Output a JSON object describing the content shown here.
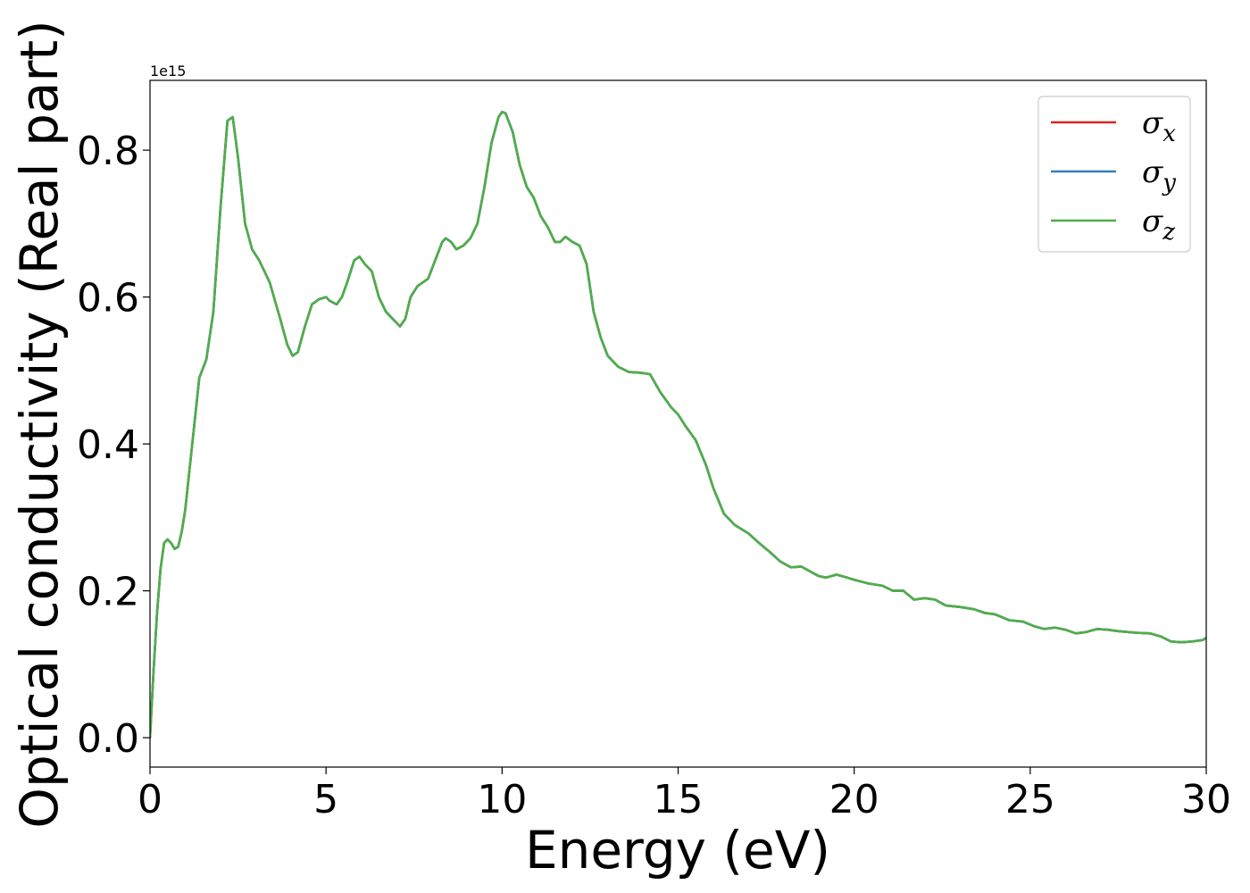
{
  "chart_data": {
    "type": "line",
    "xlabel": "Energy (eV)",
    "ylabel": "Optical conductivity (Real part)",
    "offset_text": "1e15",
    "xlim": [
      0,
      30
    ],
    "ylim": [
      -0.04,
      0.895
    ],
    "xticks": [
      0,
      5,
      10,
      15,
      20,
      25,
      30
    ],
    "xtick_labels": [
      "0",
      "5",
      "10",
      "15",
      "20",
      "25",
      "30"
    ],
    "yticks": [
      0.0,
      0.2,
      0.4,
      0.6,
      0.8
    ],
    "ytick_labels": [
      "0.0",
      "0.2",
      "0.4",
      "0.6",
      "0.8"
    ],
    "grid": false,
    "legend_position": "top-right",
    "x": [
      0,
      0.1,
      0.2,
      0.3,
      0.4,
      0.5,
      0.6,
      0.7,
      0.8,
      0.9,
      1.0,
      1.2,
      1.4,
      1.6,
      1.8,
      2.0,
      2.2,
      2.35,
      2.5,
      2.7,
      2.9,
      3.1,
      3.4,
      3.7,
      3.9,
      4.05,
      4.2,
      4.4,
      4.6,
      4.8,
      5.0,
      5.1,
      5.3,
      5.45,
      5.6,
      5.8,
      5.95,
      6.1,
      6.3,
      6.5,
      6.7,
      6.9,
      7.1,
      7.25,
      7.4,
      7.6,
      7.9,
      8.1,
      8.3,
      8.4,
      8.55,
      8.7,
      8.9,
      9.1,
      9.3,
      9.5,
      9.7,
      9.9,
      10.0,
      10.1,
      10.3,
      10.5,
      10.7,
      10.9,
      11.1,
      11.3,
      11.5,
      11.65,
      11.8,
      12.0,
      12.2,
      12.4,
      12.6,
      12.8,
      13.0,
      13.3,
      13.6,
      13.9,
      14.2,
      14.5,
      14.8,
      15.0,
      15.2,
      15.5,
      15.8,
      16.0,
      16.3,
      16.6,
      17.0,
      17.3,
      17.6,
      17.9,
      18.2,
      18.5,
      18.8,
      19.0,
      19.2,
      19.5,
      19.8,
      20.0,
      20.4,
      20.8,
      21.1,
      21.4,
      21.7,
      22.0,
      22.3,
      22.6,
      23.0,
      23.4,
      23.7,
      24.0,
      24.4,
      24.8,
      25.1,
      25.4,
      25.7,
      26.0,
      26.3,
      26.6,
      26.9,
      27.2,
      27.5,
      28.0,
      28.4,
      28.7,
      29.0,
      29.3,
      29.6,
      29.9,
      30.0
    ],
    "series": [
      {
        "name": "σx",
        "color": "#d62728",
        "y": [
          0.0,
          0.09,
          0.17,
          0.23,
          0.265,
          0.27,
          0.265,
          0.257,
          0.26,
          0.28,
          0.31,
          0.4,
          0.49,
          0.515,
          0.58,
          0.72,
          0.84,
          0.845,
          0.79,
          0.7,
          0.665,
          0.65,
          0.62,
          0.57,
          0.535,
          0.52,
          0.525,
          0.56,
          0.59,
          0.597,
          0.6,
          0.595,
          0.59,
          0.6,
          0.62,
          0.65,
          0.655,
          0.645,
          0.635,
          0.6,
          0.58,
          0.57,
          0.56,
          0.57,
          0.6,
          0.615,
          0.625,
          0.65,
          0.675,
          0.68,
          0.675,
          0.665,
          0.67,
          0.68,
          0.7,
          0.75,
          0.81,
          0.845,
          0.852,
          0.85,
          0.825,
          0.78,
          0.75,
          0.735,
          0.71,
          0.695,
          0.675,
          0.675,
          0.682,
          0.675,
          0.67,
          0.645,
          0.58,
          0.545,
          0.52,
          0.505,
          0.498,
          0.497,
          0.495,
          0.47,
          0.45,
          0.44,
          0.425,
          0.405,
          0.37,
          0.34,
          0.305,
          0.29,
          0.278,
          0.265,
          0.253,
          0.24,
          0.232,
          0.233,
          0.225,
          0.22,
          0.218,
          0.222,
          0.218,
          0.215,
          0.21,
          0.207,
          0.2,
          0.2,
          0.188,
          0.19,
          0.188,
          0.18,
          0.178,
          0.175,
          0.17,
          0.168,
          0.16,
          0.158,
          0.152,
          0.148,
          0.15,
          0.147,
          0.142,
          0.144,
          0.148,
          0.147,
          0.145,
          0.143,
          0.142,
          0.138,
          0.131,
          0.13,
          0.131,
          0.133,
          0.136
        ]
      },
      {
        "name": "σy",
        "color": "#377eb8",
        "y": [
          0.0,
          0.09,
          0.17,
          0.23,
          0.265,
          0.27,
          0.265,
          0.257,
          0.26,
          0.28,
          0.31,
          0.4,
          0.49,
          0.515,
          0.58,
          0.72,
          0.84,
          0.845,
          0.79,
          0.7,
          0.665,
          0.65,
          0.62,
          0.57,
          0.535,
          0.52,
          0.525,
          0.56,
          0.59,
          0.597,
          0.6,
          0.595,
          0.59,
          0.6,
          0.62,
          0.65,
          0.655,
          0.645,
          0.635,
          0.6,
          0.58,
          0.57,
          0.56,
          0.57,
          0.6,
          0.615,
          0.625,
          0.65,
          0.675,
          0.68,
          0.675,
          0.665,
          0.67,
          0.68,
          0.7,
          0.75,
          0.81,
          0.845,
          0.852,
          0.85,
          0.825,
          0.78,
          0.75,
          0.735,
          0.71,
          0.695,
          0.675,
          0.675,
          0.682,
          0.675,
          0.67,
          0.645,
          0.58,
          0.545,
          0.52,
          0.505,
          0.498,
          0.497,
          0.495,
          0.47,
          0.45,
          0.44,
          0.425,
          0.405,
          0.37,
          0.34,
          0.305,
          0.29,
          0.278,
          0.265,
          0.253,
          0.24,
          0.232,
          0.233,
          0.225,
          0.22,
          0.218,
          0.222,
          0.218,
          0.215,
          0.21,
          0.207,
          0.2,
          0.2,
          0.188,
          0.19,
          0.188,
          0.18,
          0.178,
          0.175,
          0.17,
          0.168,
          0.16,
          0.158,
          0.152,
          0.148,
          0.15,
          0.147,
          0.142,
          0.144,
          0.148,
          0.147,
          0.145,
          0.143,
          0.142,
          0.138,
          0.131,
          0.13,
          0.131,
          0.133,
          0.136
        ]
      },
      {
        "name": "σz",
        "color": "#4daf4a",
        "y": [
          0.0,
          0.09,
          0.17,
          0.23,
          0.265,
          0.27,
          0.265,
          0.257,
          0.26,
          0.28,
          0.31,
          0.4,
          0.49,
          0.515,
          0.58,
          0.72,
          0.84,
          0.845,
          0.79,
          0.7,
          0.665,
          0.65,
          0.62,
          0.57,
          0.535,
          0.52,
          0.525,
          0.56,
          0.59,
          0.597,
          0.6,
          0.595,
          0.59,
          0.6,
          0.62,
          0.65,
          0.655,
          0.645,
          0.635,
          0.6,
          0.58,
          0.57,
          0.56,
          0.57,
          0.6,
          0.615,
          0.625,
          0.65,
          0.675,
          0.68,
          0.675,
          0.665,
          0.67,
          0.68,
          0.7,
          0.75,
          0.81,
          0.845,
          0.852,
          0.85,
          0.825,
          0.78,
          0.75,
          0.735,
          0.71,
          0.695,
          0.675,
          0.675,
          0.682,
          0.675,
          0.67,
          0.645,
          0.58,
          0.545,
          0.52,
          0.505,
          0.498,
          0.497,
          0.495,
          0.47,
          0.45,
          0.44,
          0.425,
          0.405,
          0.37,
          0.34,
          0.305,
          0.29,
          0.278,
          0.265,
          0.253,
          0.24,
          0.232,
          0.233,
          0.225,
          0.22,
          0.218,
          0.222,
          0.218,
          0.215,
          0.21,
          0.207,
          0.2,
          0.2,
          0.188,
          0.19,
          0.188,
          0.18,
          0.178,
          0.175,
          0.17,
          0.168,
          0.16,
          0.158,
          0.152,
          0.148,
          0.15,
          0.147,
          0.142,
          0.144,
          0.148,
          0.147,
          0.145,
          0.143,
          0.142,
          0.138,
          0.131,
          0.13,
          0.131,
          0.133,
          0.136
        ]
      }
    ],
    "legend": [
      {
        "base": "σ",
        "sub": "x",
        "color": "#d62728"
      },
      {
        "base": "σ",
        "sub": "y",
        "color": "#377eb8"
      },
      {
        "base": "σ",
        "sub": "z",
        "color": "#4daf4a"
      }
    ]
  }
}
